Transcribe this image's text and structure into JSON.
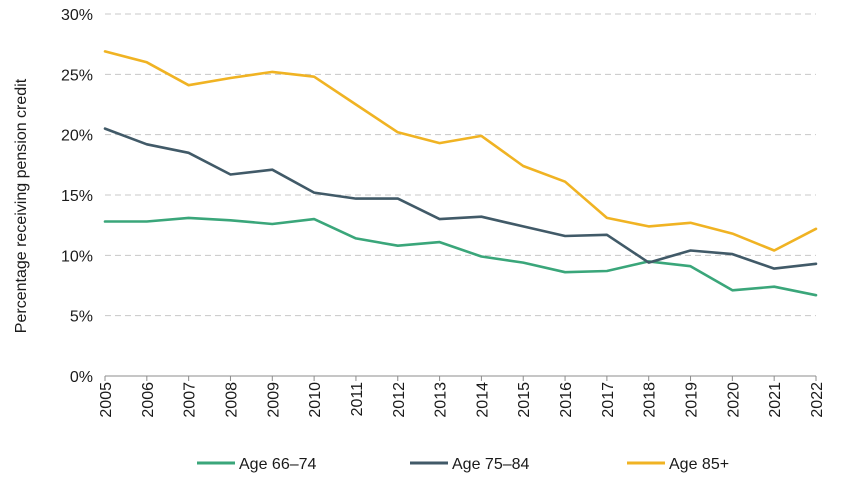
{
  "chart_data": {
    "type": "line",
    "title": "",
    "xlabel": "",
    "ylabel": "Percentage receiving pension credit",
    "ylim": [
      0,
      30
    ],
    "ytick_values": [
      0,
      5,
      10,
      15,
      20,
      25,
      30
    ],
    "ytick_labels": [
      "0%",
      "5%",
      "10%",
      "15%",
      "20%",
      "25%",
      "30%"
    ],
    "x": [
      "2005",
      "2006",
      "2007",
      "2008",
      "2009",
      "2010",
      "2011",
      "2012",
      "2013",
      "2014",
      "2015",
      "2016",
      "2017",
      "2018",
      "2019",
      "2020",
      "2021",
      "2022"
    ],
    "grid": "horizontal dashed",
    "legend_position": "bottom",
    "series": [
      {
        "name": "Age 66–74",
        "color": "#3aa67a",
        "values": [
          12.8,
          12.8,
          13.1,
          12.9,
          12.6,
          13.0,
          11.4,
          10.8,
          11.1,
          9.9,
          9.4,
          8.6,
          8.7,
          9.5,
          9.1,
          7.1,
          7.4,
          6.7
        ]
      },
      {
        "name": "Age 75–84",
        "color": "#415a68",
        "values": [
          20.5,
          19.2,
          18.5,
          16.7,
          17.1,
          15.2,
          14.7,
          14.7,
          13.0,
          13.2,
          12.4,
          11.6,
          11.7,
          9.4,
          10.4,
          10.1,
          8.9,
          9.3
        ]
      },
      {
        "name": "Age 85+",
        "color": "#f0b323",
        "values": [
          26.9,
          26.0,
          24.1,
          24.7,
          25.2,
          24.8,
          22.5,
          20.2,
          19.3,
          19.9,
          17.4,
          16.1,
          13.1,
          12.4,
          12.7,
          11.8,
          10.4,
          12.2
        ]
      }
    ]
  }
}
